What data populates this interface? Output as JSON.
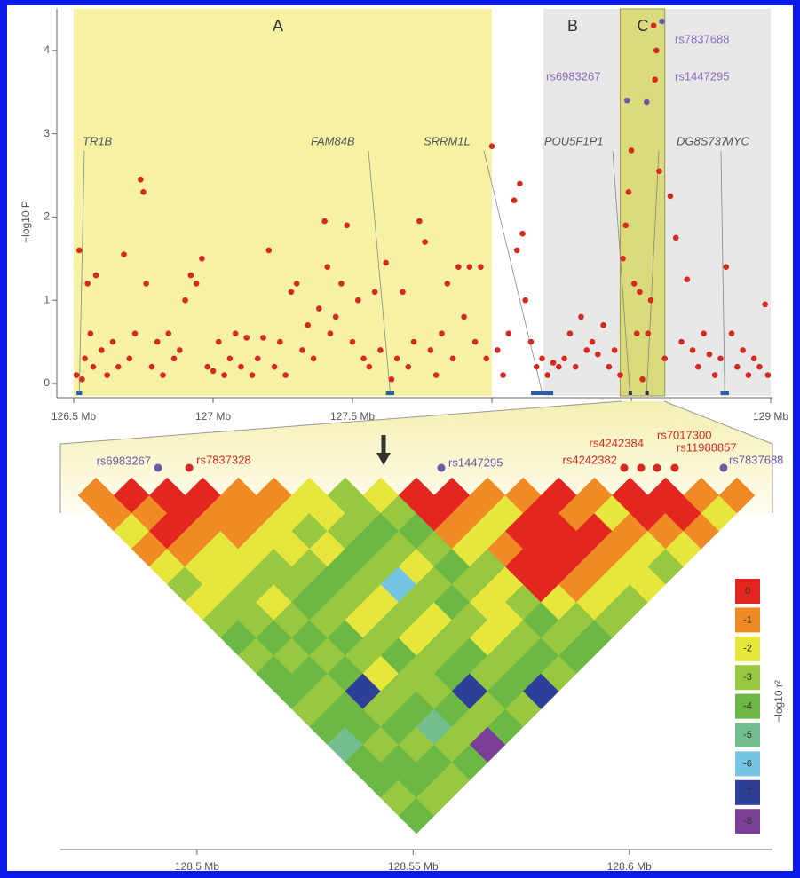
{
  "chart_data": [
    {
      "type": "scatter",
      "ylabel": "−log10 P",
      "ylim": [
        -0.15,
        4.5
      ],
      "yticks": [
        0,
        1,
        2,
        3,
        4
      ],
      "xlim": [
        126.5,
        129
      ],
      "xticks": [
        {
          "value": 126.5,
          "label": "126.5 Mb"
        },
        {
          "value": 127,
          "label": "127 Mb"
        },
        {
          "value": 127.5,
          "label": "127.5 Mb"
        },
        {
          "value": 128,
          "label": "128 Mb"
        },
        {
          "value": 128.5,
          "label": "128.5 Mb"
        },
        {
          "value": 129,
          "label": "129 Mb"
        }
      ],
      "regions": [
        {
          "label": "A",
          "start": 126.5,
          "end": 128.0,
          "color": "#f7f1a4"
        },
        {
          "label": "B",
          "start": 128.185,
          "end": 129.0,
          "color": "#e8e8e8"
        },
        {
          "label": "C",
          "start": 128.46,
          "end": 128.62,
          "color": "#d9db7c"
        }
      ],
      "genes": [
        {
          "name": "TR1B",
          "start": 126.51,
          "end": 126.53
        },
        {
          "name": "FAM84B",
          "start": 127.62,
          "end": 127.65
        },
        {
          "name": "SRRM1L",
          "start": 128.14,
          "end": 128.22
        },
        {
          "name": "POU5F1P1",
          "start": 128.49,
          "end": 128.5
        },
        {
          "name": "DG8S737",
          "start": 128.55,
          "end": 128.56
        },
        {
          "name": "MYC",
          "start": 128.82,
          "end": 128.85
        }
      ],
      "snp_labels": [
        {
          "text": "rs7837688",
          "color": "#8a6cc0"
        },
        {
          "text": "rs6983267",
          "color": "#8a6cc0"
        },
        {
          "text": "rs1447295",
          "color": "#8a6cc0"
        }
      ],
      "series": [
        {
          "color": "#d42a20",
          "x": [
            126.51,
            126.52,
            126.53,
            126.54,
            126.55,
            126.56,
            126.57,
            126.58,
            126.6,
            126.62,
            126.64,
            126.66,
            126.68,
            126.7,
            126.72,
            126.74,
            126.75,
            126.76,
            126.78,
            126.8,
            126.82,
            126.84,
            126.86,
            126.88,
            126.9,
            126.92,
            126.94,
            126.96,
            126.98,
            127.0,
            127.02,
            127.04,
            127.06,
            127.08,
            127.1,
            127.12,
            127.14,
            127.16,
            127.18,
            127.2,
            127.22,
            127.24,
            127.26,
            127.28,
            127.3,
            127.32,
            127.34,
            127.36,
            127.38,
            127.4,
            127.41,
            127.42,
            127.44,
            127.46,
            127.48,
            127.5,
            127.52,
            127.54,
            127.56,
            127.58,
            127.6,
            127.62,
            127.64,
            127.66,
            127.68,
            127.7,
            127.72,
            127.74,
            127.76,
            127.78,
            127.8,
            127.82,
            127.84,
            127.86,
            127.88,
            127.9,
            127.92,
            127.94,
            127.96,
            127.98,
            128.0,
            128.02,
            128.04,
            128.06,
            128.08,
            128.09,
            128.1,
            128.11,
            128.12,
            128.14,
            128.16,
            128.18,
            128.2,
            128.22,
            128.24,
            128.26,
            128.28,
            128.3,
            128.32,
            128.34,
            128.36,
            128.38,
            128.4,
            128.42,
            128.44,
            128.46,
            128.47,
            128.48,
            128.49,
            128.5,
            128.51,
            128.52,
            128.53,
            128.54,
            128.56,
            128.57,
            128.58,
            128.585,
            128.59,
            128.6,
            128.62,
            128.64,
            128.66,
            128.68,
            128.7,
            128.72,
            128.74,
            128.76,
            128.78,
            128.8,
            128.82,
            128.84,
            128.86,
            128.88,
            128.9,
            128.92,
            128.94,
            128.96,
            128.98,
            128.99
          ],
          "values": [
            0.1,
            1.6,
            0.05,
            0.3,
            1.2,
            0.6,
            0.2,
            1.3,
            0.4,
            0.1,
            0.5,
            0.2,
            1.55,
            0.3,
            0.6,
            2.45,
            2.3,
            1.2,
            0.2,
            0.5,
            0.1,
            0.6,
            0.3,
            0.4,
            1.0,
            1.3,
            1.2,
            1.5,
            0.2,
            0.15,
            0.5,
            0.1,
            0.3,
            0.6,
            0.2,
            0.55,
            0.1,
            0.3,
            0.55,
            1.6,
            0.2,
            0.5,
            0.1,
            1.1,
            1.2,
            0.4,
            0.7,
            0.3,
            0.9,
            1.95,
            1.4,
            0.6,
            0.8,
            1.2,
            1.9,
            0.5,
            1.0,
            0.3,
            0.2,
            1.1,
            0.4,
            1.45,
            0.05,
            0.3,
            1.1,
            0.2,
            0.5,
            1.95,
            1.7,
            0.4,
            0.1,
            0.6,
            1.2,
            0.3,
            1.4,
            0.8,
            1.4,
            0.5,
            1.4,
            0.3,
            2.85,
            0.4,
            0.1,
            0.6,
            2.2,
            1.6,
            2.4,
            1.8,
            1.0,
            0.5,
            0.2,
            0.3,
            0.1,
            0.25,
            0.2,
            0.3,
            0.6,
            0.2,
            0.8,
            0.4,
            0.5,
            0.35,
            0.7,
            0.2,
            0.4,
            0.1,
            1.5,
            1.9,
            2.3,
            2.8,
            1.2,
            0.6,
            1.1,
            0.05,
            0.6,
            1.0,
            4.3,
            3.65,
            4.0,
            2.55,
            0.3,
            2.25,
            1.75,
            0.5,
            1.25,
            0.4,
            0.2,
            0.6,
            0.35,
            0.1,
            0.3,
            1.4,
            0.6,
            0.2,
            0.4,
            0.1,
            0.3,
            0.2,
            0.95,
            0.1
          ]
        },
        {
          "color": "#6a5aa8",
          "x": [
            128.485,
            128.555,
            128.61
          ],
          "values": [
            3.4,
            3.38,
            4.35
          ]
        }
      ]
    },
    {
      "type": "heatmap",
      "xlim": [
        128.4684,
        128.6331
      ],
      "xticks": [
        {
          "value": 128.5,
          "label": "128.5 Mb"
        },
        {
          "value": 128.55,
          "label": "128.55 Mb"
        },
        {
          "value": 128.6,
          "label": "128.6 Mb"
        }
      ],
      "snps": [
        {
          "name": "rs6983267",
          "position": 128.491,
          "color": "#6a5aa8"
        },
        {
          "name": "rs7837328",
          "position": 128.4982,
          "color": "#d42a20"
        },
        {
          "name": "rs1447295",
          "position": 128.5565,
          "color": "#6a5aa8"
        },
        {
          "name": "rs4242382",
          "position": 128.5988,
          "color": "#d42a20"
        },
        {
          "name": "rs4242384",
          "position": 128.6027,
          "color": "#d42a20"
        },
        {
          "name": "rs7017300",
          "position": 128.6064,
          "color": "#d42a20"
        },
        {
          "name": "rs11988857",
          "position": 128.6105,
          "color": "#d42a20"
        },
        {
          "name": "rs7837688",
          "position": 128.6218,
          "color": "#6a5aa8"
        }
      ],
      "ld": [
        [
          -1,
          -1,
          -2,
          -1,
          -2,
          -3,
          -2,
          -3,
          -4,
          -3,
          -4,
          -4,
          -3,
          -4,
          -5,
          -4,
          -4,
          -3,
          -4
        ],
        [
          0,
          -1,
          0,
          -1,
          -2,
          -2,
          -3,
          -3,
          -4,
          -3,
          -4,
          -3,
          -4,
          -4,
          -3,
          -4,
          -4,
          -3
        ],
        [
          0,
          0,
          -1,
          -2,
          -2,
          -3,
          -2,
          -3,
          -4,
          -3,
          -4,
          -7,
          -3,
          -4,
          -3,
          -4,
          -3
        ],
        [
          0,
          -1,
          -1,
          -2,
          -3,
          -3,
          -4,
          -3,
          -4,
          -3,
          -2,
          -3,
          -4,
          -5,
          -3,
          -4
        ],
        [
          -1,
          -1,
          -2,
          -2,
          -3,
          -4,
          -3,
          -2,
          -3,
          -4,
          -3,
          -3,
          -4,
          -3,
          -8
        ],
        [
          -1,
          -2,
          -3,
          -2,
          -4,
          -3,
          -2,
          -3,
          -2,
          -3,
          -4,
          -7,
          -3,
          -4
        ],
        [
          -2,
          -2,
          -3,
          -4,
          -3,
          -6,
          -3,
          -2,
          -3,
          -4,
          -3,
          -4,
          -3
        ],
        [
          -3,
          -3,
          -4,
          -3,
          -2,
          -3,
          -4,
          -3,
          -2,
          -3,
          -4,
          -7
        ],
        [
          -2,
          -3,
          -4,
          -3,
          -4,
          -3,
          -2,
          -2,
          -3,
          -4,
          -3
        ],
        [
          0,
          0,
          -1,
          -2,
          -3,
          -2,
          -3,
          -4,
          -3,
          -4
        ],
        [
          0,
          -1,
          -2,
          -1,
          0,
          0,
          -2,
          -3,
          -4
        ],
        [
          -1,
          -2,
          0,
          0,
          0,
          -1,
          -2,
          -3
        ],
        [
          -1,
          0,
          0,
          0,
          -1,
          -2,
          -3
        ],
        [
          0,
          -1,
          0,
          -1,
          -2,
          -2
        ],
        [
          -1,
          -2,
          -1,
          -2,
          -3
        ],
        [
          0,
          0,
          -1,
          -2
        ],
        [
          0,
          0,
          -1
        ],
        [
          -1,
          -2
        ],
        [
          -1
        ]
      ],
      "colorbar": {
        "ticks": [
          0,
          -1,
          -2,
          -3,
          -4,
          -5,
          -6,
          -7,
          -8
        ],
        "colors": [
          "#e3261f",
          "#ef8a25",
          "#e6e63c",
          "#98c840",
          "#6cb844",
          "#72be8e",
          "#74c4e2",
          "#2e3f98",
          "#7b3f98"
        ]
      },
      "colorbar_label": "−log10 r²"
    }
  ]
}
